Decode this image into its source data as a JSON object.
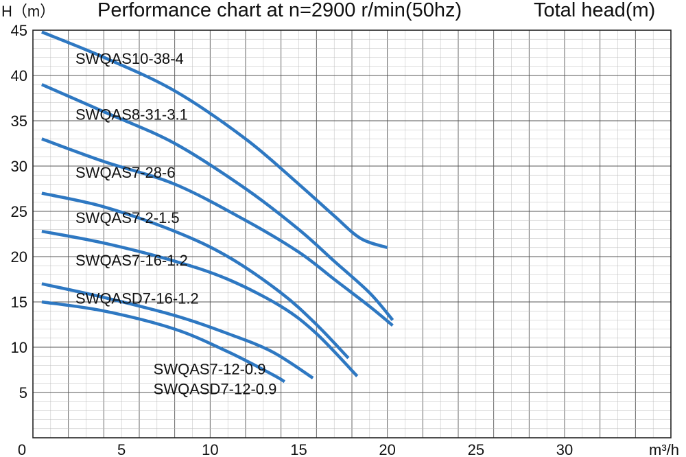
{
  "chart_data": {
    "type": "line",
    "title": "Performance chart at n=2900 r/min(50hz)",
    "title_right": "Total head(m)",
    "ylabel": "H（m）",
    "xlabel": "m³/h",
    "xlim": [
      0,
      36
    ],
    "ylim": [
      0,
      45
    ],
    "x_ticks": [
      0,
      5,
      10,
      15,
      20,
      25,
      30
    ],
    "y_ticks": [
      5,
      10,
      15,
      20,
      25,
      30,
      35,
      40,
      45
    ],
    "grid": true,
    "line_color": "#2e78c2",
    "series": [
      {
        "name": "SWQAS10-38-4",
        "x": [
          0.5,
          4,
          8,
          12,
          15,
          17,
          18.5,
          20
        ],
        "y": [
          44.8,
          42,
          38.3,
          33,
          28,
          24.5,
          22,
          21
        ]
      },
      {
        "name": "SWQAS8-31-3.1",
        "x": [
          0.5,
          4,
          8,
          12,
          15,
          17,
          19,
          20.3
        ],
        "y": [
          39,
          36,
          32.5,
          27.5,
          23,
          19.5,
          16,
          13
        ]
      },
      {
        "name": "SWQAS7-28-6",
        "x": [
          0.5,
          4,
          8,
          12,
          15,
          17,
          19,
          20.3
        ],
        "y": [
          33,
          30.5,
          28,
          24,
          20.5,
          17.5,
          14.5,
          12.4
        ]
      },
      {
        "name": "SWQAS7-2-1.5",
        "x": [
          0.5,
          4,
          8,
          11,
          14,
          16,
          17.8
        ],
        "y": [
          27,
          25.5,
          22.8,
          20,
          16,
          12.5,
          8.8
        ]
      },
      {
        "name": "SWQAS7-16-1.2",
        "x": [
          0.5,
          4,
          8,
          11,
          14,
          16,
          18.3
        ],
        "y": [
          22.8,
          21.5,
          19.5,
          17.5,
          14.5,
          11.5,
          6.8
        ]
      },
      {
        "name": "SWQASD7-16-1.2",
        "x": [
          0.5,
          4,
          8,
          11,
          13.5,
          15.8
        ],
        "y": [
          17,
          15.5,
          13.5,
          11.5,
          9.5,
          6.6
        ]
      },
      {
        "name": "SWQAS7-12-0.9",
        "x": [
          0.5,
          4,
          8,
          11,
          13.5,
          14.2
        ],
        "y": [
          15,
          14,
          12,
          9.5,
          7,
          6.2
        ]
      },
      {
        "name": "SWQASD7-12-0.9",
        "x": [],
        "y": []
      }
    ]
  }
}
